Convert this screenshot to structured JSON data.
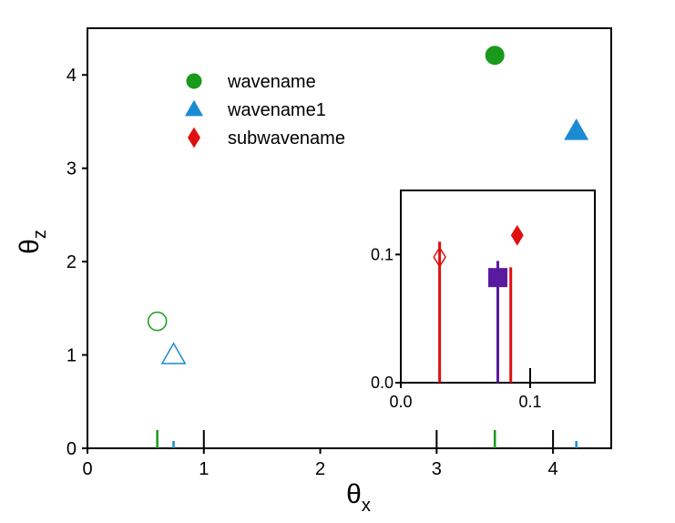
{
  "chart_data": [
    {
      "type": "scatter",
      "role": "main",
      "xlabel": {
        "base": "θ",
        "sub": "x"
      },
      "ylabel": {
        "base": "θ",
        "sub": "z"
      },
      "xlim": [
        0,
        4.5
      ],
      "ylim": [
        0,
        4.5
      ],
      "xticks": [
        0,
        1,
        2,
        3,
        4
      ],
      "yticks": [
        0,
        1,
        2,
        3,
        4
      ],
      "grid": false,
      "legend_position": "upper-left",
      "series": [
        {
          "name": "wavename",
          "marker": "circle",
          "color": "#1a9a1a",
          "points": [
            {
              "x": 0.6,
              "y": 1.36,
              "filled": false
            },
            {
              "x": 3.5,
              "y": 4.21,
              "filled": true
            }
          ],
          "rug_x": [
            0.6,
            3.5
          ]
        },
        {
          "name": "wavename1",
          "marker": "triangle",
          "color": "#1b8bd3",
          "points": [
            {
              "x": 0.74,
              "y": 1.0,
              "filled": false
            },
            {
              "x": 4.2,
              "y": 3.4,
              "filled": true
            }
          ],
          "rug_x": [
            0.74,
            4.2
          ]
        },
        {
          "name": "subwavename",
          "marker": "diamond",
          "color": "#e01010",
          "points": [],
          "legend_only": true
        }
      ],
      "rug_black_x": [
        1,
        3,
        4
      ]
    },
    {
      "type": "scatter",
      "role": "inset",
      "xlim": [
        0,
        0.15
      ],
      "ylim": [
        0,
        0.15
      ],
      "xticks": [
        0.0,
        0.1
      ],
      "xtick_labels": [
        "0.0",
        "0.1"
      ],
      "yticks": [
        0.0,
        0.1
      ],
      "ytick_labels": [
        "0.0",
        "0.1"
      ],
      "grid": false,
      "series": [
        {
          "name": "subwavename",
          "marker": "diamond",
          "color": "#e01010",
          "points": [
            {
              "x": 0.03,
              "y": 0.098,
              "filled": false
            },
            {
              "x": 0.09,
              "y": 0.115,
              "filled": true
            }
          ],
          "drops": [
            {
              "x": 0.03,
              "top": 0.11
            },
            {
              "x": 0.085,
              "top": 0.09
            }
          ]
        },
        {
          "name": "",
          "marker": "square",
          "color": "#5a1aa0",
          "points": [
            {
              "x": 0.075,
              "y": 0.082,
              "filled": true
            }
          ],
          "drops": [
            {
              "x": 0.075,
              "top": 0.095
            }
          ]
        }
      ],
      "black_ticks_x": [
        0.1
      ]
    }
  ]
}
